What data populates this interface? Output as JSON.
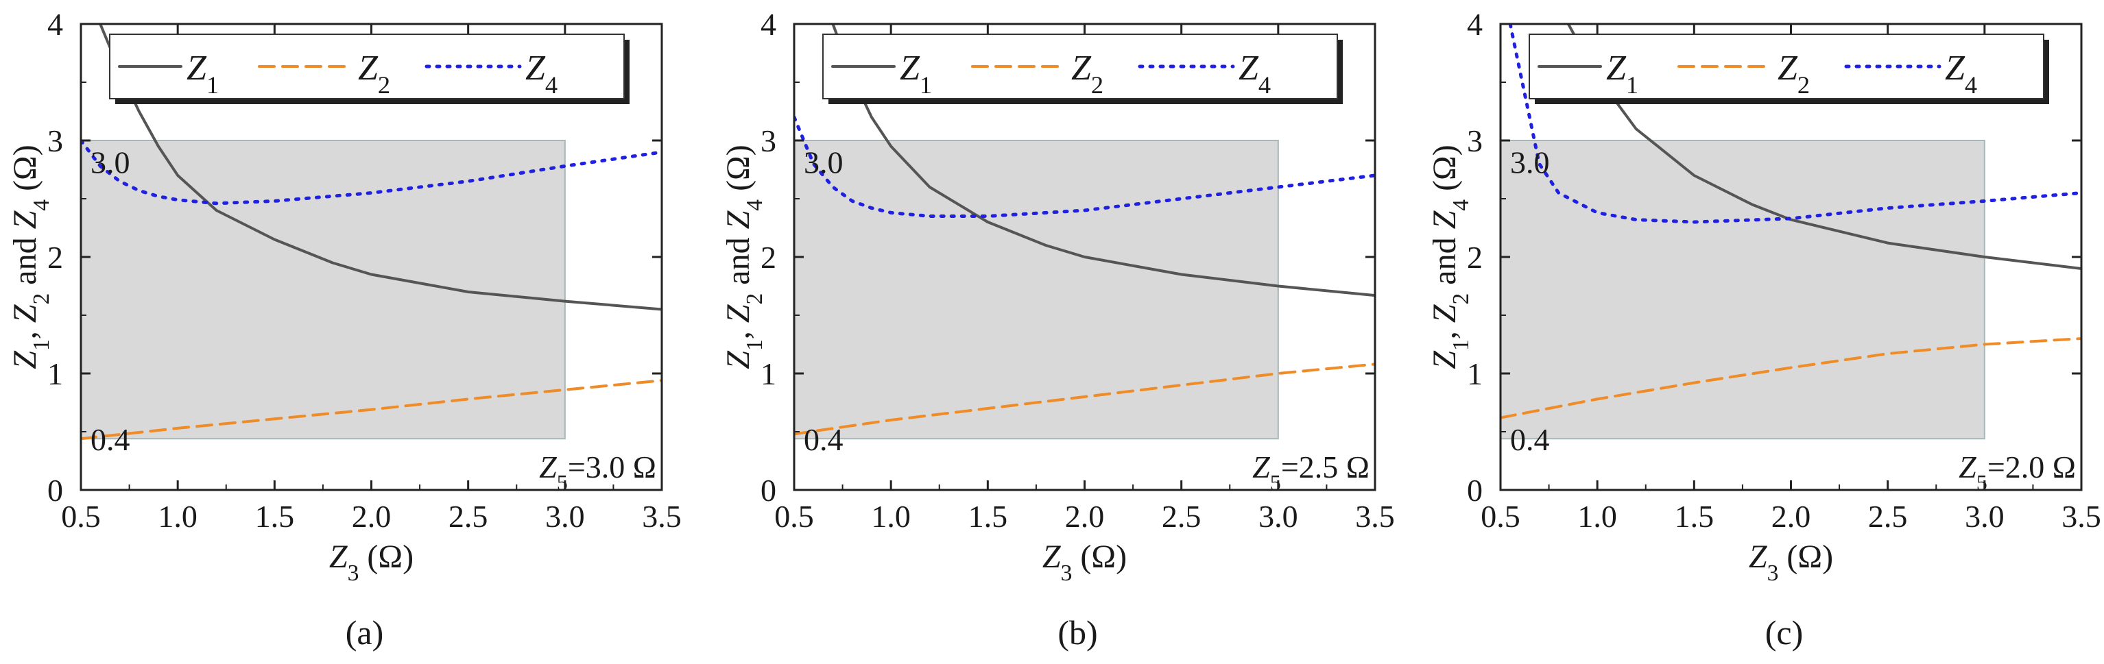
{
  "figure": {
    "panels": [
      {
        "caption": "(a)",
        "z5_label": {
          "var": "Z",
          "sub": "5",
          "rest": "=3.0 Ω"
        },
        "legend": [
          {
            "main": "Z",
            "sub": "1"
          },
          {
            "main": "Z",
            "sub": "2"
          },
          {
            "main": "Z",
            "sub": "4"
          }
        ]
      },
      {
        "caption": "(b)",
        "z5_label": {
          "var": "Z",
          "sub": "5",
          "rest": "=2.5 Ω"
        },
        "legend": [
          {
            "main": "Z",
            "sub": "1"
          },
          {
            "main": "Z",
            "sub": "2"
          },
          {
            "main": "Z",
            "sub": "4"
          }
        ]
      },
      {
        "caption": "(c)",
        "z5_label": {
          "var": "Z",
          "sub": "5",
          "rest": "=2.0 Ω"
        },
        "legend": [
          {
            "main": "Z",
            "sub": "1"
          },
          {
            "main": "Z",
            "sub": "2"
          },
          {
            "main": "Z",
            "sub": "4"
          }
        ]
      }
    ]
  },
  "chart_data": [
    {
      "type": "line",
      "title": "",
      "xlabel": "Z3 (Ω)",
      "ylabel": "Z1, Z2 and Z4 (Ω)",
      "xlim": [
        0.5,
        3.5
      ],
      "ylim": [
        0,
        4
      ],
      "xticks": [
        "0.5",
        "1.0",
        "1.5",
        "2.0",
        "2.5",
        "3.0",
        "3.5"
      ],
      "yticks": [
        "0",
        "1",
        "2",
        "3",
        "4"
      ],
      "shaded_region": {
        "x": [
          0.5,
          3.0
        ],
        "y": [
          0.44,
          3.0
        ],
        "labels": [
          "3.0",
          "0.4"
        ]
      },
      "Z5": "3.0 Ω",
      "series": [
        {
          "name": "Z1",
          "style": "solid",
          "color": "#555555",
          "x": [
            0.6,
            0.7,
            0.8,
            0.9,
            1.0,
            1.2,
            1.5,
            1.8,
            2.0,
            2.5,
            3.0,
            3.5
          ],
          "y": [
            4.0,
            3.6,
            3.25,
            2.95,
            2.7,
            2.4,
            2.15,
            1.95,
            1.85,
            1.7,
            1.62,
            1.55
          ]
        },
        {
          "name": "Z2",
          "style": "dashed",
          "color": "#f08c28",
          "x": [
            0.5,
            1.0,
            1.5,
            2.0,
            2.5,
            3.0,
            3.5
          ],
          "y": [
            0.44,
            0.53,
            0.61,
            0.69,
            0.78,
            0.86,
            0.94
          ]
        },
        {
          "name": "Z4",
          "style": "dotted",
          "color": "#2020e0",
          "x": [
            0.5,
            0.6,
            0.7,
            0.8,
            0.9,
            1.0,
            1.2,
            1.5,
            2.0,
            2.5,
            3.0,
            3.5
          ],
          "y": [
            3.0,
            2.78,
            2.65,
            2.57,
            2.52,
            2.49,
            2.46,
            2.48,
            2.55,
            2.65,
            2.78,
            2.9
          ]
        }
      ]
    },
    {
      "type": "line",
      "title": "",
      "xlabel": "Z3 (Ω)",
      "ylabel": "Z1, Z2 and Z4 (Ω)",
      "xlim": [
        0.5,
        3.5
      ],
      "ylim": [
        0,
        4
      ],
      "xticks": [
        "0.5",
        "1.0",
        "1.5",
        "2.0",
        "2.5",
        "3.0",
        "3.5"
      ],
      "yticks": [
        "0",
        "1",
        "2",
        "3",
        "4"
      ],
      "shaded_region": {
        "x": [
          0.5,
          3.0
        ],
        "y": [
          0.44,
          3.0
        ],
        "labels": [
          "3.0",
          "0.4"
        ]
      },
      "Z5": "2.5 Ω",
      "series": [
        {
          "name": "Z1",
          "style": "solid",
          "color": "#555555",
          "x": [
            0.7,
            0.8,
            0.9,
            1.0,
            1.2,
            1.5,
            1.8,
            2.0,
            2.5,
            3.0,
            3.5
          ],
          "y": [
            4.0,
            3.55,
            3.2,
            2.95,
            2.6,
            2.3,
            2.1,
            2.0,
            1.85,
            1.75,
            1.67
          ]
        },
        {
          "name": "Z2",
          "style": "dashed",
          "color": "#f08c28",
          "x": [
            0.5,
            1.0,
            1.5,
            2.0,
            2.5,
            3.0,
            3.5
          ],
          "y": [
            0.48,
            0.6,
            0.7,
            0.8,
            0.9,
            1.0,
            1.08
          ]
        },
        {
          "name": "Z4",
          "style": "dotted",
          "color": "#2020e0",
          "x": [
            0.5,
            0.55,
            0.6,
            0.7,
            0.8,
            0.9,
            1.0,
            1.2,
            1.5,
            2.0,
            2.5,
            3.0,
            3.5
          ],
          "y": [
            3.2,
            3.0,
            2.8,
            2.6,
            2.48,
            2.42,
            2.38,
            2.35,
            2.35,
            2.4,
            2.5,
            2.6,
            2.7
          ]
        }
      ]
    },
    {
      "type": "line",
      "title": "",
      "xlabel": "Z3 (Ω)",
      "ylabel": "Z1, Z2 and Z4 (Ω)",
      "xlim": [
        0.5,
        3.5
      ],
      "ylim": [
        0,
        4
      ],
      "xticks": [
        "0.5",
        "1.0",
        "1.5",
        "2.0",
        "2.5",
        "3.0",
        "3.5"
      ],
      "yticks": [
        "0",
        "1",
        "2",
        "3",
        "4"
      ],
      "shaded_region": {
        "x": [
          0.5,
          3.0
        ],
        "y": [
          0.44,
          3.0
        ],
        "labels": [
          "3.0",
          "0.4"
        ]
      },
      "Z5": "2.0 Ω",
      "series": [
        {
          "name": "Z1",
          "style": "solid",
          "color": "#555555",
          "x": [
            0.85,
            1.0,
            1.2,
            1.5,
            1.8,
            2.0,
            2.5,
            3.0,
            3.5
          ],
          "y": [
            4.0,
            3.55,
            3.1,
            2.7,
            2.45,
            2.32,
            2.12,
            2.0,
            1.9
          ]
        },
        {
          "name": "Z2",
          "style": "dashed",
          "color": "#f08c28",
          "x": [
            0.5,
            1.0,
            1.5,
            2.0,
            2.5,
            3.0,
            3.5
          ],
          "y": [
            0.62,
            0.78,
            0.92,
            1.05,
            1.17,
            1.25,
            1.3
          ]
        },
        {
          "name": "Z4",
          "style": "dotted",
          "color": "#2020e0",
          "x": [
            0.55,
            0.6,
            0.65,
            0.7,
            0.8,
            1.0,
            1.2,
            1.5,
            2.0,
            2.5,
            3.0,
            3.5
          ],
          "y": [
            4.0,
            3.6,
            3.2,
            2.8,
            2.55,
            2.38,
            2.32,
            2.3,
            2.33,
            2.42,
            2.48,
            2.55
          ]
        }
      ]
    }
  ]
}
